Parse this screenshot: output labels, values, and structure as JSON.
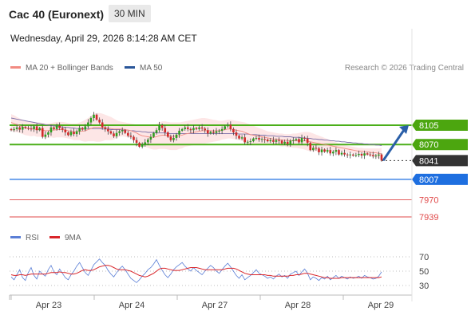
{
  "header": {
    "title": "Cac 40 (Euronext)",
    "timeframe": "30 MIN",
    "datetime": "Wednesday, April 29, 2026 8:14:28 AM CET"
  },
  "legend": {
    "items": [
      {
        "label": "MA 20 + Bollinger Bands",
        "color": "#f28b82"
      },
      {
        "label": "MA 50",
        "color": "#2a5699"
      }
    ],
    "research": "Research © 2026 Trading Central"
  },
  "rsi_legend": {
    "items": [
      {
        "label": "RSI",
        "color": "#5b7fd6"
      },
      {
        "label": "9MA",
        "color": "#d9252a"
      }
    ]
  },
  "chart_data": [
    {
      "type": "line",
      "name": "price",
      "x_ticks": [
        "Apr 23",
        "Apr 24",
        "Apr 27",
        "Apr 28",
        "Apr 29"
      ],
      "y_range": [
        7925,
        8130
      ],
      "close": [
        8096,
        8098,
        8101,
        8097,
        8102,
        8100,
        8099,
        8098,
        8103,
        8096,
        8100,
        8084,
        8088,
        8092,
        8101,
        8098,
        8104,
        8100,
        8097,
        8092,
        8087,
        8093,
        8089,
        8094,
        8100,
        8097,
        8103,
        8110,
        8118,
        8124,
        8115,
        8110,
        8101,
        8098,
        8094,
        8090,
        8085,
        8091,
        8094,
        8096,
        8091,
        8086,
        8084,
        8078,
        8073,
        8066,
        8070,
        8074,
        8079,
        8084,
        8091,
        8096,
        8105,
        8100,
        8092,
        8084,
        8078,
        8082,
        8088,
        8095,
        8098,
        8101,
        8098,
        8096,
        8100,
        8098,
        8101,
        8099,
        8096,
        8090,
        8093,
        8091,
        8094,
        8095,
        8098,
        8103,
        8106,
        8098,
        8092,
        8086,
        8081,
        8083,
        8074,
        8075,
        8076,
        8081,
        8082,
        8079,
        8080,
        8079,
        8076,
        8078,
        8075,
        8078,
        8077,
        8072,
        8075,
        8071,
        8077,
        8078,
        8080,
        8074,
        8082,
        8081,
        8073,
        8060,
        8064,
        8063,
        8056,
        8061,
        8057,
        8060,
        8054,
        8057,
        8060,
        8052,
        8055,
        8052,
        8051,
        8052,
        8050,
        8051,
        8053,
        8050,
        8054,
        8052,
        8051,
        8049,
        8050,
        8052,
        8041
      ],
      "ma20": [
        8110,
        8108,
        8106,
        8104,
        8102,
        8100,
        8099,
        8098,
        8098,
        8097,
        8097,
        8096,
        8095,
        8095,
        8096,
        8096,
        8097,
        8097,
        8097,
        8096,
        8095,
        8094,
        8093,
        8093,
        8094,
        8094,
        8095,
        8097,
        8099,
        8101,
        8101,
        8101,
        8101,
        8101,
        8100,
        8099,
        8098,
        8098,
        8098,
        8098,
        8097,
        8096,
        8095,
        8093,
        8091,
        8088,
        8086,
        8085,
        8084,
        8083,
        8083,
        8084,
        8086,
        8087,
        8087,
        8086,
        8085,
        8085,
        8085,
        8086,
        8087,
        8089,
        8090,
        8091,
        8092,
        8093,
        8094,
        8095,
        8095,
        8095,
        8095,
        8095,
        8095,
        8095,
        8096,
        8097,
        8098,
        8098,
        8097,
        8096,
        8095,
        8094,
        8092,
        8090,
        8088,
        8087,
        8086,
        8085,
        8084,
        8083,
        8082,
        8081,
        8080,
        8080,
        8079,
        8078,
        8078,
        8077,
        8077,
        8077,
        8077,
        8077,
        8077,
        8077,
        8076,
        8075,
        8074,
        8073,
        8072,
        8071,
        8070,
        8069,
        8068,
        8067,
        8066,
        8065,
        8064,
        8063,
        8062,
        8061,
        8060,
        8059,
        8058,
        8058,
        8057,
        8057,
        8056,
        8055,
        8055,
        8054,
        8053
      ],
      "bb_upper": [
        8125,
        8123,
        8120,
        8117,
        8115,
        8113,
        8112,
        8111,
        8110,
        8110,
        8110,
        8109,
        8108,
        8108,
        8109,
        8110,
        8111,
        8111,
        8111,
        8110,
        8109,
        8108,
        8108,
        8108,
        8110,
        8112,
        8115,
        8118,
        8122,
        8126,
        8127,
        8127,
        8126,
        8124,
        8122,
        8120,
        8117,
        8114,
        8112,
        8111,
        8110,
        8109,
        8108,
        8107,
        8106,
        8105,
        8104,
        8104,
        8104,
        8104,
        8105,
        8107,
        8110,
        8112,
        8112,
        8111,
        8110,
        8110,
        8110,
        8110,
        8111,
        8112,
        8113,
        8114,
        8115,
        8116,
        8117,
        8118,
        8118,
        8117,
        8116,
        8115,
        8114,
        8113,
        8113,
        8114,
        8115,
        8115,
        8114,
        8113,
        8112,
        8111,
        8110,
        8108,
        8106,
        8104,
        8102,
        8100,
        8098,
        8096,
        8094,
        8093,
        8092,
        8091,
        8090,
        8090,
        8089,
        8089,
        8089,
        8090,
        8090,
        8091,
        8092,
        8093,
        8093,
        8092,
        8090,
        8088,
        8086,
        8084,
        8082,
        8080,
        8078,
        8076,
        8074,
        8072,
        8070,
        8069,
        8068,
        8067,
        8066,
        8065,
        8064,
        8064,
        8063,
        8063,
        8063,
        8063,
        8063,
        8063,
        8064
      ],
      "bb_lower": [
        8095,
        8093,
        8092,
        8091,
        8089,
        8087,
        8086,
        8085,
        8086,
        8084,
        8084,
        8083,
        8082,
        8082,
        8083,
        8082,
        8083,
        8083,
        8083,
        8082,
        8081,
        8080,
        8078,
        8078,
        8078,
        8076,
        8075,
        8076,
        8076,
        8076,
        8075,
        8075,
        8076,
        8078,
        8078,
        8078,
        8079,
        8082,
        8084,
        8085,
        8084,
        8083,
        8082,
        8079,
        8076,
        8071,
        8068,
        8066,
        8064,
        8062,
        8061,
        8061,
        8062,
        8062,
        8062,
        8061,
        8060,
        8060,
        8060,
        8062,
        8063,
        8066,
        8067,
        8068,
        8069,
        8070,
        8071,
        8072,
        8072,
        8073,
        8074,
        8075,
        8076,
        8077,
        8079,
        8080,
        8081,
        8081,
        8080,
        8079,
        8078,
        8077,
        8074,
        8072,
        8070,
        8070,
        8070,
        8070,
        8070,
        8070,
        8070,
        8069,
        8068,
        8069,
        8068,
        8066,
        8067,
        8065,
        8065,
        8064,
        8064,
        8063,
        8062,
        8061,
        8059,
        8058,
        8058,
        8058,
        8058,
        8058,
        8058,
        8058,
        8058,
        8058,
        8058,
        8058,
        8058,
        8057,
        8056,
        8055,
        8054,
        8053,
        8052,
        8052,
        8051,
        8051,
        8049,
        8047,
        8047,
        8045,
        8042
      ],
      "ma50": [
        8118,
        8117,
        8116,
        8115,
        8114,
        8113,
        8112,
        8111,
        8110,
        8109,
        8108,
        8107,
        8106,
        8105,
        8104,
        8104,
        8103,
        8102,
        8102,
        8101,
        8101,
        8100,
        8100,
        8099,
        8099,
        8099,
        8099,
        8099,
        8099,
        8099,
        8099,
        8099,
        8098,
        8098,
        8098,
        8097,
        8097,
        8097,
        8097,
        8096,
        8096,
        8096,
        8095,
        8095,
        8094,
        8094,
        8093,
        8093,
        8092,
        8092,
        8092,
        8091,
        8091,
        8091,
        8091,
        8090,
        8090,
        8090,
        8090,
        8090,
        8090,
        8090,
        8090,
        8090,
        8090,
        8090,
        8090,
        8090,
        8090,
        8090,
        8090,
        8090,
        8090,
        8090,
        8090,
        8090,
        8090,
        8090,
        8090,
        8090,
        8089,
        8089,
        8089,
        8089,
        8088,
        8088,
        8088,
        8087,
        8087,
        8087,
        8086,
        8086,
        8086,
        8085,
        8085,
        8085,
        8084,
        8084,
        8084,
        8083,
        8083,
        8083,
        8082,
        8082,
        8081,
        8081,
        8080,
        8080,
        8079,
        8079,
        8078,
        8078,
        8077,
        8077,
        8076,
        8076,
        8075,
        8075,
        8074,
        8074,
        8073,
        8073,
        8072,
        8072,
        8071,
        8071,
        8070,
        8070,
        8069,
        8069,
        8068
      ],
      "levels": [
        {
          "value": 8105,
          "label": "8105",
          "kind": "resistance",
          "color": "#4caf1a"
        },
        {
          "value": 8070,
          "label": "8070",
          "kind": "resistance",
          "color": "#4caf1a"
        },
        {
          "value": 8041,
          "label": "8041",
          "kind": "last",
          "color": "#333333"
        },
        {
          "value": 8007,
          "label": "8007",
          "kind": "pivot",
          "color": "#1e6fe0"
        },
        {
          "value": 7970,
          "label": "7970",
          "kind": "support",
          "color": "#e04848"
        },
        {
          "value": 7939,
          "label": "7939",
          "kind": "support",
          "color": "#e04848"
        }
      ],
      "arrow": {
        "from": 8041,
        "to": 8105,
        "color": "#2a5fa8"
      }
    },
    {
      "type": "line",
      "name": "rsi",
      "y_ticks": [
        70,
        50,
        30
      ],
      "y_range": [
        20,
        80
      ],
      "rsi": [
        42,
        38,
        45,
        52,
        41,
        37,
        48,
        55,
        44,
        39,
        50,
        46,
        43,
        52,
        58,
        49,
        45,
        53,
        47,
        41,
        38,
        45,
        50,
        57,
        62,
        55,
        48,
        44,
        51,
        59,
        63,
        67,
        62,
        58,
        51,
        46,
        42,
        48,
        53,
        57,
        52,
        46,
        40,
        37,
        34,
        38,
        43,
        47,
        52,
        55,
        60,
        66,
        58,
        51,
        45,
        41,
        46,
        52,
        56,
        59,
        62,
        57,
        53,
        50,
        55,
        51,
        48,
        45,
        50,
        54,
        58,
        55,
        50,
        47,
        52,
        57,
        61,
        56,
        50,
        44,
        40,
        45,
        38,
        41,
        44,
        48,
        52,
        47,
        45,
        43,
        40,
        42,
        39,
        43,
        46,
        42,
        44,
        40,
        46,
        48,
        50,
        44,
        49,
        53,
        47,
        38,
        42,
        40,
        37,
        41,
        39,
        43,
        38,
        41,
        44,
        40,
        43,
        41,
        39,
        42,
        40,
        41,
        43,
        40,
        44,
        42,
        41,
        39,
        40,
        43,
        49
      ],
      "ma9": [
        45,
        44,
        44,
        45,
        45,
        44,
        45,
        46,
        46,
        46,
        46,
        46,
        46,
        47,
        48,
        48,
        48,
        49,
        48,
        48,
        47,
        46,
        46,
        47,
        49,
        51,
        52,
        51,
        51,
        52,
        54,
        56,
        57,
        58,
        58,
        57,
        55,
        53,
        52,
        52,
        52,
        51,
        50,
        48,
        46,
        44,
        43,
        42,
        43,
        45,
        47,
        50,
        53,
        54,
        54,
        53,
        52,
        51,
        51,
        51,
        52,
        53,
        54,
        55,
        55,
        55,
        54,
        53,
        52,
        52,
        52,
        52,
        52,
        52,
        52,
        53,
        54,
        54,
        54,
        53,
        51,
        49,
        47,
        46,
        45,
        45,
        45,
        45,
        45,
        45,
        44,
        44,
        43,
        43,
        43,
        43,
        43,
        43,
        44,
        44,
        45,
        45,
        46,
        47,
        47,
        46,
        45,
        44,
        43,
        42,
        41,
        41,
        40,
        40,
        40,
        40,
        41,
        41,
        41,
        41,
        41,
        41,
        41,
        41,
        41,
        41,
        41,
        41,
        41,
        41,
        42
      ]
    }
  ]
}
